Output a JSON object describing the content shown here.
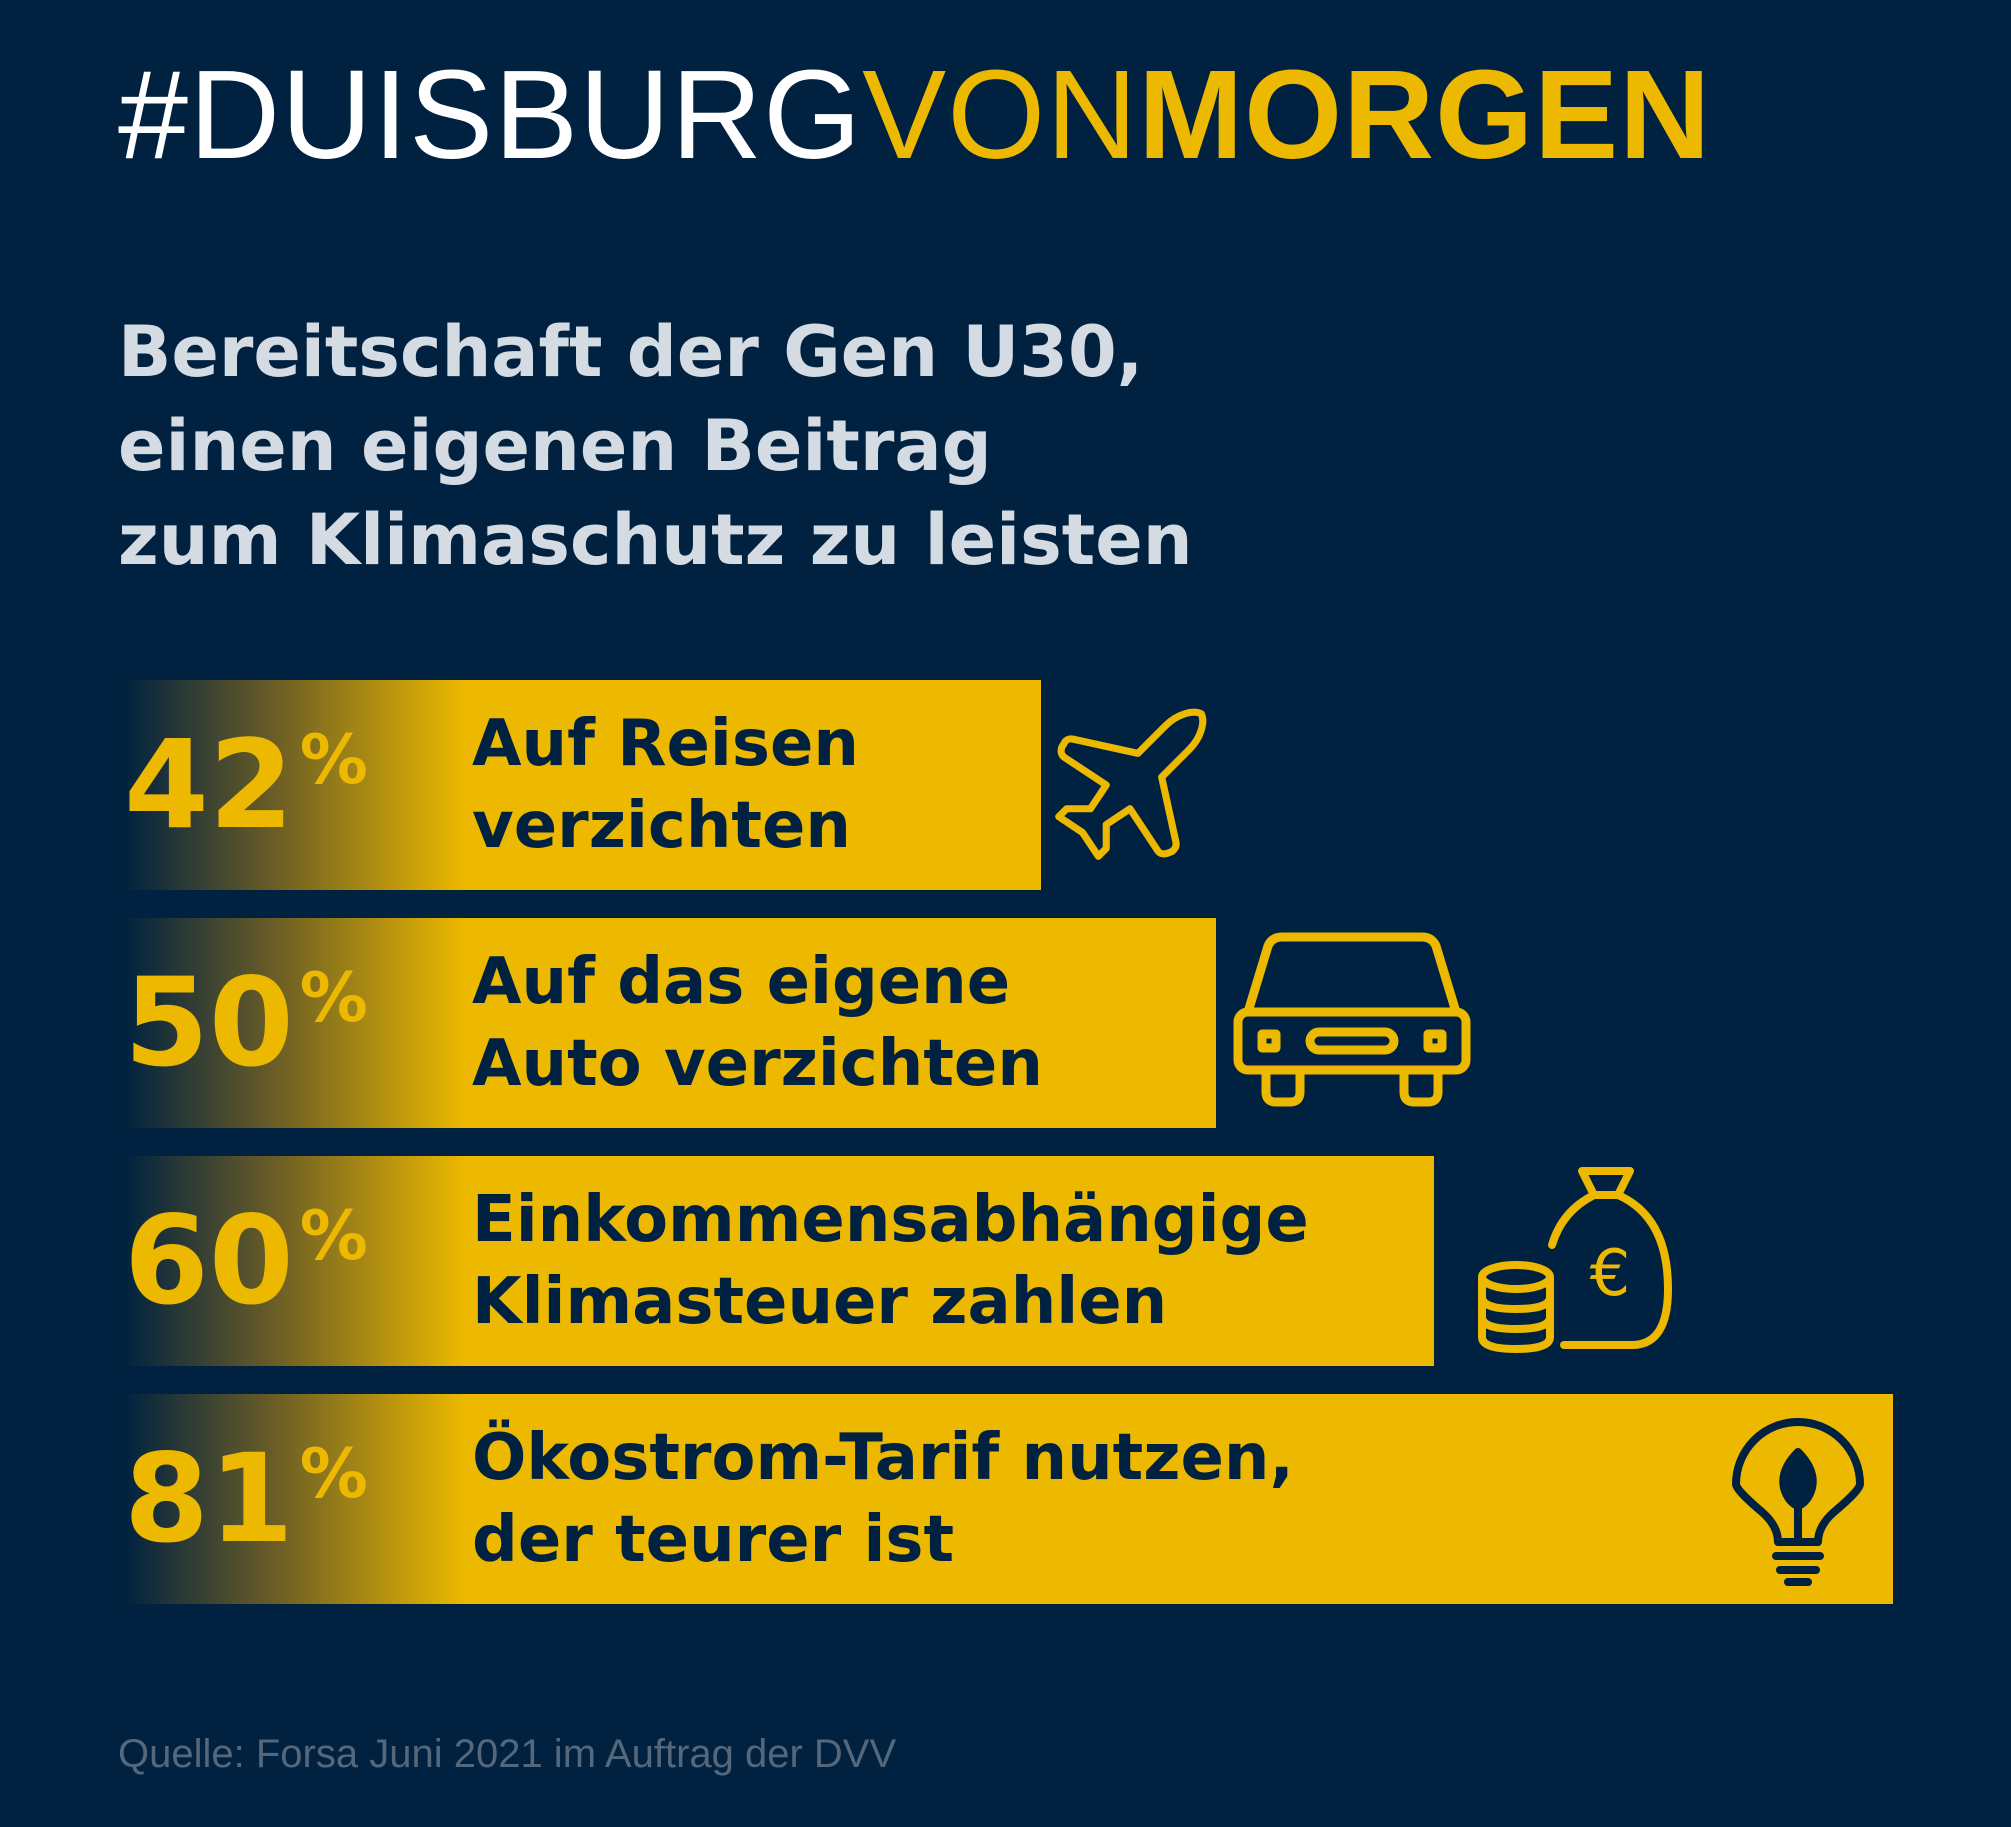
{
  "header": {
    "hashtag_white": "#DUISBURG",
    "hashtag_yellow_regular": "VON",
    "hashtag_yellow_bold": "MORGEN"
  },
  "subtitle_lines": [
    "Bereitschaft der Gen U30,",
    "einen eigenen Beitrag",
    "zum Klimaschutz zu leisten"
  ],
  "footer": {
    "source": "Quelle: Forsa Juni 2021 im Auftrag der DVV"
  },
  "colors": {
    "background": "#002240",
    "accent": "#ecb800",
    "subtitle": "#d4dbe3",
    "source": "#54677b"
  },
  "chart_data": {
    "type": "bar",
    "orientation": "horizontal",
    "unit": "%",
    "categories": [
      "Auf Reisen verzichten",
      "Auf das eigene Auto verzichten",
      "Einkommensabhängige Klimasteuer zahlen",
      "Ökostrom-Tarif nutzen, der teurer ist"
    ],
    "values": [
      42,
      50,
      60,
      81
    ],
    "rows": [
      {
        "value": 42,
        "value_text": "42",
        "percent_sign": "%",
        "label_lines": [
          "Auf Reisen",
          "verzichten"
        ],
        "icon": "airplane-icon"
      },
      {
        "value": 50,
        "value_text": "50",
        "percent_sign": "%",
        "label_lines": [
          "Auf das eigene",
          "Auto verzichten"
        ],
        "icon": "car-icon"
      },
      {
        "value": 60,
        "value_text": "60",
        "percent_sign": "%",
        "label_lines": [
          "Einkommensabhängige",
          "Klimasteuer zahlen"
        ],
        "icon": "money-bag-coins-icon"
      },
      {
        "value": 81,
        "value_text": "81",
        "percent_sign": "%",
        "label_lines": [
          "Ökostrom-Tarif nutzen,",
          "der teurer ist"
        ],
        "icon": "lightbulb-leaf-icon"
      }
    ]
  }
}
